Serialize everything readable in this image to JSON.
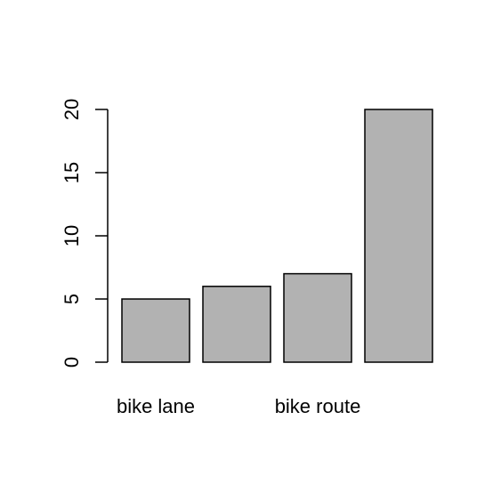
{
  "chart_data": {
    "type": "bar",
    "categories": [
      "bike lane",
      "",
      "bike route",
      ""
    ],
    "values": [
      5,
      6,
      7,
      20
    ],
    "title": "",
    "xlabel": "",
    "ylabel": "",
    "ylim": [
      0,
      20
    ],
    "yticks": [
      0,
      5,
      10,
      15,
      20
    ],
    "ytick_labels": [
      "0",
      "5",
      "10",
      "15",
      "20"
    ],
    "grid": false,
    "bar_color": "#b2b2b2",
    "edge_color": "#000000"
  }
}
